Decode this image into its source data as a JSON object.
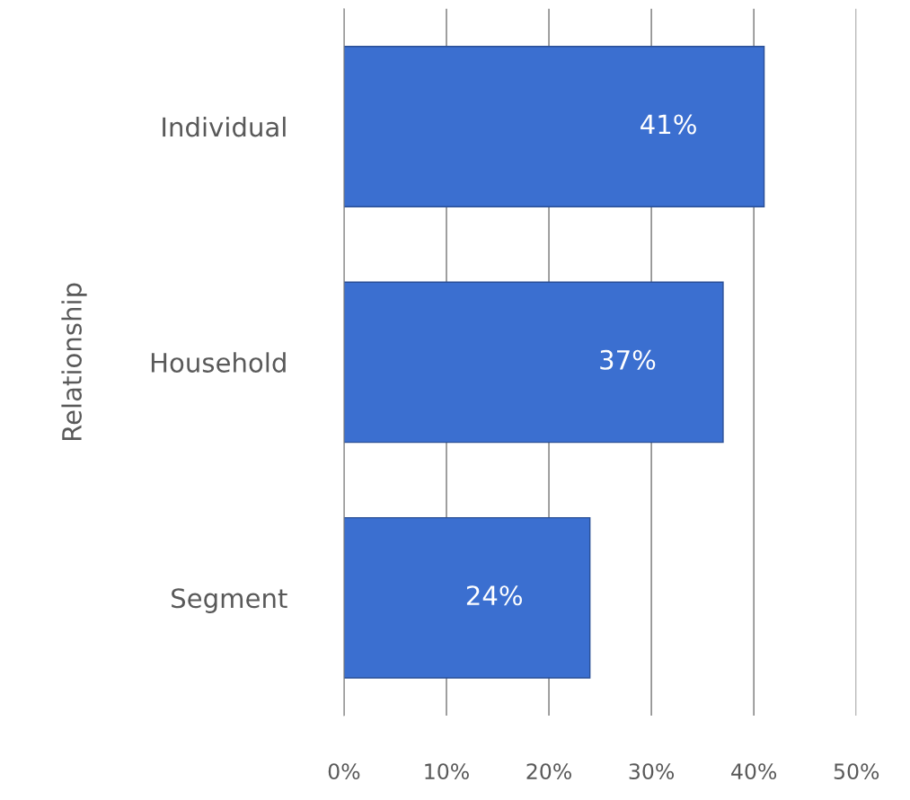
{
  "chart_data": {
    "type": "bar",
    "orientation": "horizontal",
    "ylabel": "Relationship",
    "categories": [
      "Individual",
      "Household",
      "Segment"
    ],
    "values": [
      41,
      37,
      24
    ],
    "value_labels": [
      "41%",
      "37%",
      "24%"
    ],
    "color": "#3b6fd0",
    "xlim": [
      0,
      50
    ],
    "xticks": [
      {
        "value": 0,
        "label": "0%"
      },
      {
        "value": 10,
        "label": "10%"
      },
      {
        "value": 20,
        "label": "20%"
      },
      {
        "value": 30,
        "label": "30%"
      },
      {
        "value": 40,
        "label": "40%"
      },
      {
        "value": 50,
        "label": "50%"
      }
    ],
    "grid": "x",
    "legend": false
  }
}
